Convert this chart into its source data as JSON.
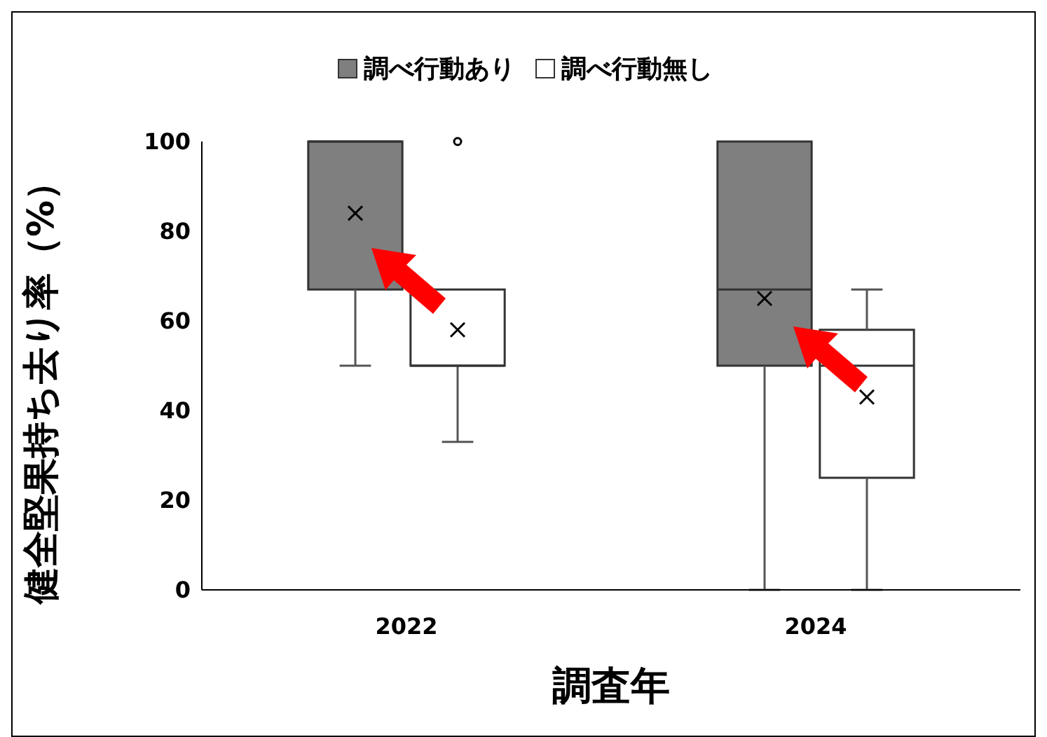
{
  "chart_data": {
    "type": "box",
    "xlabel": "調査年",
    "ylabel": "健全堅果持ち去り率（%）",
    "categories": [
      "2022",
      "2024"
    ],
    "ylim": [
      0,
      100
    ],
    "yticks": [
      0,
      20,
      40,
      60,
      80,
      100
    ],
    "grid": false,
    "legend": "top",
    "marker": "cross",
    "series": [
      {
        "name": "調べ行動あり",
        "color": "#7f7f7f",
        "boxes": [
          {
            "low": 50,
            "q1": 67,
            "median": 100,
            "q3": 100,
            "high": 100,
            "mean": 84
          },
          {
            "low": 0,
            "q1": 50,
            "median": 67,
            "q3": 100,
            "high": 100,
            "mean": 65
          }
        ]
      },
      {
        "name": "調べ行動無し",
        "color": "#ffffff",
        "boxes": [
          {
            "low": 33,
            "q1": 50,
            "median": 50,
            "q3": 67,
            "high": 67,
            "mean": 58,
            "outliers": [
              100
            ]
          },
          {
            "low": 0,
            "q1": 25,
            "median": 50,
            "q3": 58,
            "high": 67,
            "mean": 43
          }
        ]
      }
    ]
  }
}
